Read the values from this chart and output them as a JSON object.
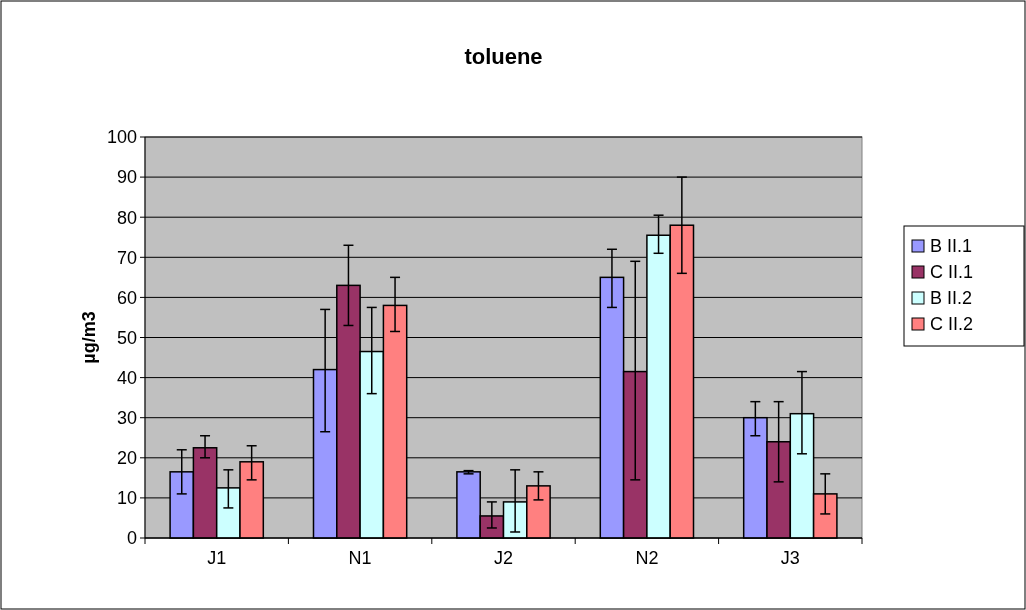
{
  "chart_data": {
    "type": "bar",
    "title": "toluene",
    "ylabel": "µg/m3",
    "categories": [
      "J1",
      "N1",
      "J2",
      "N2",
      "J3"
    ],
    "series": [
      {
        "name": "B II.1",
        "color": "#9999ff",
        "values": [
          16.5,
          42,
          16.5,
          65,
          30
        ],
        "errors": [
          [
            11,
            22
          ],
          [
            26.5,
            57
          ],
          [
            16,
            16.8
          ],
          [
            57.5,
            72
          ],
          [
            25.5,
            34
          ]
        ]
      },
      {
        "name": "C II.1",
        "color": "#993366",
        "values": [
          22.5,
          63,
          5.5,
          41.5,
          24
        ],
        "errors": [
          [
            20,
            25.5
          ],
          [
            53,
            73
          ],
          [
            2.5,
            9
          ],
          [
            14.5,
            69
          ],
          [
            14,
            34
          ]
        ]
      },
      {
        "name": "B II.2",
        "color": "#ccffff",
        "values": [
          12.5,
          46.5,
          9,
          75.5,
          31
        ],
        "errors": [
          [
            7.5,
            17
          ],
          [
            36,
            57.5
          ],
          [
            1.5,
            17
          ],
          [
            71,
            80.5
          ],
          [
            21,
            41.5
          ]
        ]
      },
      {
        "name": "C II.2",
        "color": "#ff8080",
        "values": [
          19,
          58,
          13,
          78,
          11
        ],
        "errors": [
          [
            14.5,
            23
          ],
          [
            51.5,
            65
          ],
          [
            9.5,
            16.5
          ],
          [
            66,
            90
          ],
          [
            6,
            16
          ]
        ]
      }
    ],
    "ylim": [
      0,
      100
    ],
    "yticks": [
      0,
      10,
      20,
      30,
      40,
      50,
      60,
      70,
      80,
      90,
      100
    ],
    "grid": "y",
    "legend": "right"
  }
}
